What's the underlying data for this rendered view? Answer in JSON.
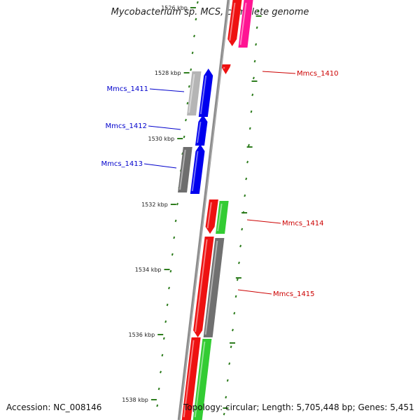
{
  "title": "Mycobacterium sp. MCS, complete genome",
  "footer": {
    "accession_label": "Accession: NC_008146",
    "summary": "Topology: circular; Length: 5,705,448 bp; Genes: 5,451"
  },
  "colors": {
    "backbone": "#8c8c8c",
    "tick": "#2e7d1e",
    "forward_label": "#0000cc",
    "reverse_label": "#cc0000"
  },
  "scale": {
    "unit": "kbp",
    "major_ticks": [
      "1526 kbp",
      "1528 kbp",
      "1530 kbp",
      "1532 kbp",
      "1534 kbp",
      "1536 kbp",
      "1538 kbp"
    ]
  },
  "genes": [
    {
      "name": "Mmcs_1410",
      "label_color": "reverse"
    },
    {
      "name": "Mmcs_1411",
      "label_color": "forward"
    },
    {
      "name": "Mmcs_1412",
      "label_color": "forward"
    },
    {
      "name": "Mmcs_1413",
      "label_color": "forward"
    },
    {
      "name": "Mmcs_1414",
      "label_color": "reverse"
    },
    {
      "name": "Mmcs_1415",
      "label_color": "reverse"
    }
  ]
}
